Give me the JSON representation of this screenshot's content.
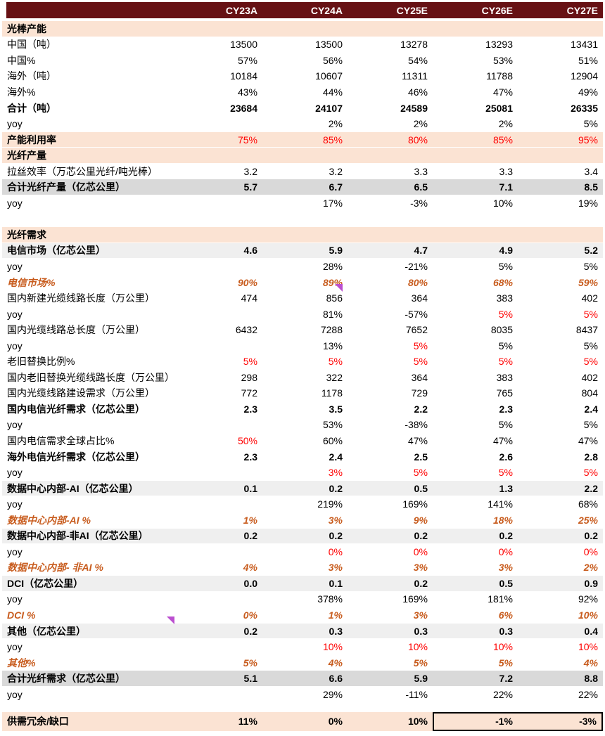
{
  "chart_data": {
    "type": "table",
    "columns": [
      "CY23A",
      "CY24A",
      "CY25E",
      "CY26E",
      "CY27E"
    ],
    "rows": [
      {
        "label": "光棒产能",
        "style": "section"
      },
      {
        "label": "中国（吨）",
        "style": "plain",
        "values": [
          "13500",
          "13500",
          "13278",
          "13293",
          "13431"
        ]
      },
      {
        "label": "中国%",
        "style": "plain",
        "values": [
          "57%",
          "56%",
          "54%",
          "53%",
          "51%"
        ]
      },
      {
        "label": "海外（吨）",
        "style": "plain",
        "values": [
          "10184",
          "10607",
          "11311",
          "11788",
          "12904"
        ]
      },
      {
        "label": "海外%",
        "style": "plain",
        "values": [
          "43%",
          "44%",
          "46%",
          "47%",
          "49%"
        ]
      },
      {
        "label": "合计（吨）",
        "style": "bold",
        "values": [
          "23684",
          "24107",
          "24589",
          "25081",
          "26335"
        ]
      },
      {
        "label": "yoy",
        "style": "plain",
        "values": [
          "",
          "2%",
          "2%",
          "2%",
          "5%"
        ]
      },
      {
        "label": "产能利用率",
        "style": "capacity",
        "values": [
          "75%",
          "85%",
          "80%",
          "85%",
          "95%"
        ]
      },
      {
        "label": "光纤产量",
        "style": "section"
      },
      {
        "label": "拉丝效率（万芯公里光纤/吨光棒）",
        "style": "plain",
        "values": [
          "3.2",
          "3.2",
          "3.3",
          "3.3",
          "3.4"
        ]
      },
      {
        "label": "合计光纤产量（亿芯公里）",
        "style": "gray",
        "values": [
          "5.7",
          "6.7",
          "6.5",
          "7.1",
          "8.5"
        ]
      },
      {
        "label": "yoy",
        "style": "plain",
        "values": [
          "",
          "17%",
          "-3%",
          "10%",
          "19%"
        ]
      },
      {
        "style": "blank"
      },
      {
        "label": "光纤需求",
        "style": "section"
      },
      {
        "label": "电信市场（亿芯公里）",
        "style": "light",
        "values": [
          "4.6",
          "5.9",
          "4.7",
          "4.9",
          "5.2"
        ]
      },
      {
        "label": "yoy",
        "style": "plain",
        "values": [
          "",
          "28%",
          "-21%",
          "5%",
          "5%"
        ]
      },
      {
        "label": "电信市场%",
        "style": "orange",
        "values": [
          "90%",
          "89%",
          "80%",
          "68%",
          "59%"
        ]
      },
      {
        "label": "国内新建光缆线路长度（万公里）",
        "style": "plain",
        "values": [
          "474",
          "856",
          "364",
          "383",
          "402"
        ]
      },
      {
        "label": "yoy",
        "style": "plain",
        "values": [
          "",
          "81%",
          "-57%",
          "5%",
          "5%"
        ],
        "vcolors": [
          "",
          "",
          "",
          "r",
          "r"
        ]
      },
      {
        "label": "国内光缆线路总长度（万公里）",
        "style": "plain",
        "values": [
          "6432",
          "7288",
          "7652",
          "8035",
          "8437"
        ]
      },
      {
        "label": "yoy",
        "style": "plain",
        "values": [
          "",
          "13%",
          "5%",
          "5%",
          "5%"
        ],
        "vcolors": [
          "",
          "",
          "r",
          "",
          ""
        ]
      },
      {
        "label": "老旧替换比例%",
        "style": "plain",
        "values": [
          "5%",
          "5%",
          "5%",
          "5%",
          "5%"
        ],
        "vcolors": [
          "r",
          "r",
          "r",
          "r",
          "r"
        ]
      },
      {
        "label": "国内老旧替换光缆线路长度（万公里）",
        "style": "plain",
        "values": [
          "298",
          "322",
          "364",
          "383",
          "402"
        ]
      },
      {
        "label": "国内光缆线路建设需求（万公里）",
        "style": "plain",
        "values": [
          "772",
          "1178",
          "729",
          "765",
          "804"
        ]
      },
      {
        "label": "国内电信光纤需求（亿芯公里）",
        "style": "bold",
        "values": [
          "2.3",
          "3.5",
          "2.2",
          "2.3",
          "2.4"
        ]
      },
      {
        "label": "yoy",
        "style": "plain",
        "values": [
          "",
          "53%",
          "-38%",
          "5%",
          "5%"
        ]
      },
      {
        "label": "国内电信需求全球占比%",
        "style": "plain",
        "values": [
          "50%",
          "60%",
          "47%",
          "47%",
          "47%"
        ],
        "vcolors": [
          "r",
          "",
          "",
          "",
          ""
        ]
      },
      {
        "label": "海外电信光纤需求（亿芯公里）",
        "style": "bold",
        "values": [
          "2.3",
          "2.4",
          "2.5",
          "2.6",
          "2.8"
        ]
      },
      {
        "label": "yoy",
        "style": "plain",
        "values": [
          "",
          "3%",
          "5%",
          "5%",
          "5%"
        ],
        "vcolors": [
          "",
          "r",
          "r",
          "r",
          "r"
        ]
      },
      {
        "label": "数据中心内部-AI（亿芯公里）",
        "style": "light",
        "values": [
          "0.1",
          "0.2",
          "0.5",
          "1.3",
          "2.2"
        ]
      },
      {
        "label": "yoy",
        "style": "plain",
        "values": [
          "",
          "219%",
          "169%",
          "141%",
          "68%"
        ]
      },
      {
        "label": "数据中心内部-AI %",
        "style": "orange",
        "values": [
          "1%",
          "3%",
          "9%",
          "18%",
          "25%"
        ]
      },
      {
        "label": "数据中心内部-非AI（亿芯公里）",
        "style": "light",
        "values": [
          "0.2",
          "0.2",
          "0.2",
          "0.2",
          "0.2"
        ]
      },
      {
        "label": "yoy",
        "style": "plain",
        "values": [
          "",
          "0%",
          "0%",
          "0%",
          "0%"
        ],
        "vcolors": [
          "",
          "r",
          "r",
          "r",
          "r"
        ]
      },
      {
        "label": "数据中心内部- 非AI %",
        "style": "orange",
        "values": [
          "4%",
          "3%",
          "3%",
          "3%",
          "2%"
        ]
      },
      {
        "label": "DCI（亿芯公里）",
        "style": "light",
        "values": [
          "0.0",
          "0.1",
          "0.2",
          "0.5",
          "0.9"
        ]
      },
      {
        "label": "yoy",
        "style": "plain",
        "values": [
          "",
          "378%",
          "169%",
          "181%",
          "92%"
        ]
      },
      {
        "label": "DCI %",
        "style": "orange",
        "values": [
          "0%",
          "1%",
          "3%",
          "6%",
          "10%"
        ]
      },
      {
        "label": "其他（亿芯公里）",
        "style": "light",
        "values": [
          "0.2",
          "0.3",
          "0.3",
          "0.3",
          "0.4"
        ]
      },
      {
        "label": "yoy",
        "style": "plain",
        "values": [
          "",
          "10%",
          "10%",
          "10%",
          "10%"
        ],
        "vcolors": [
          "",
          "r",
          "r",
          "r",
          "r"
        ]
      },
      {
        "label": "其他%",
        "style": "orange",
        "values": [
          "5%",
          "4%",
          "5%",
          "5%",
          "4%"
        ]
      },
      {
        "label": "合计光纤需求（亿芯公里）",
        "style": "gray",
        "values": [
          "5.1",
          "6.6",
          "5.9",
          "7.2",
          "8.8"
        ]
      },
      {
        "label": "yoy",
        "style": "plain",
        "values": [
          "",
          "29%",
          "-11%",
          "22%",
          "22%"
        ]
      },
      {
        "style": "blank-sm"
      },
      {
        "label": "供需冗余/缺口",
        "style": "final",
        "values": [
          "11%",
          "0%",
          "10%",
          "-1%",
          "-3%"
        ],
        "boxed": [
          3,
          4
        ]
      }
    ],
    "layout_hints": {
      "header_align": "right",
      "values_align": "right",
      "highlight_box_columns": [
        "CY26E",
        "CY27E"
      ],
      "highlight_box_row": "供需冗余/缺口"
    }
  },
  "colors": {
    "header_bg": "#671114",
    "header_text": "#ffffff",
    "section_bg": "#fbe3d3",
    "total_row_bg": "#d9d9d9",
    "subtotal_row_bg": "#efefef",
    "red_text": "#ff0000",
    "orange_text": "#c85c1e",
    "comment_marker": "#bb4fd0",
    "highlight_box_border": "#000000"
  },
  "annotations": {
    "comment_markers": [
      {
        "name": "comment-marker-icon",
        "near_row": "国内新建光缆线路长度（万公里）",
        "near_column": "CY24A"
      },
      {
        "name": "comment-marker-icon",
        "near_row": "其他（亿芯公里）",
        "near_column": "label"
      }
    ]
  }
}
